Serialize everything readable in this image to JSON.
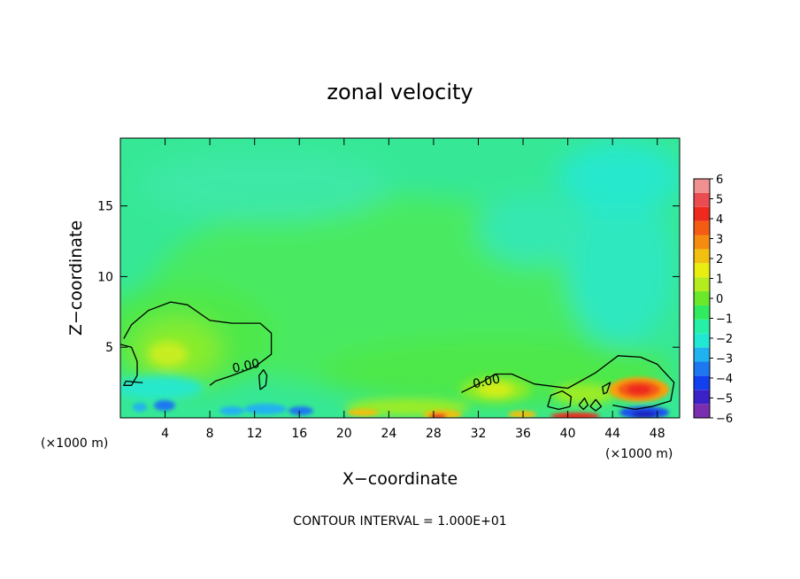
{
  "chart_data": {
    "type": "heatmap",
    "title": "zonal velocity",
    "xlabel": "X−coordinate",
    "ylabel": "Z−coordinate",
    "x_unit_left": "(×1000 m)",
    "x_unit_right": "(×1000 m)",
    "xlim": [
      0,
      50
    ],
    "ylim": [
      0,
      19.8
    ],
    "x_ticks": [
      {
        "v": 4,
        "label": "4"
      },
      {
        "v": 8,
        "label": "8"
      },
      {
        "v": 12,
        "label": "12"
      },
      {
        "v": 16,
        "label": "16"
      },
      {
        "v": 20,
        "label": "20"
      },
      {
        "v": 24,
        "label": "24"
      },
      {
        "v": 28,
        "label": "28"
      },
      {
        "v": 32,
        "label": "32"
      },
      {
        "v": 36,
        "label": "36"
      },
      {
        "v": 40,
        "label": "40"
      },
      {
        "v": 44,
        "label": "44"
      },
      {
        "v": 48,
        "label": "48"
      }
    ],
    "y_ticks": [
      {
        "v": 5,
        "label": "5"
      },
      {
        "v": 10,
        "label": "10"
      },
      {
        "v": 15,
        "label": "15"
      }
    ],
    "colorbar": {
      "range": [
        -6,
        6
      ],
      "labels": [
        {
          "v": 6,
          "label": "6"
        },
        {
          "v": 5,
          "label": "5"
        },
        {
          "v": 4,
          "label": "4"
        },
        {
          "v": 3,
          "label": "3"
        },
        {
          "v": 2,
          "label": "2"
        },
        {
          "v": 1,
          "label": "1"
        },
        {
          "v": 0,
          "label": "0"
        },
        {
          "v": -1,
          "label": "−1"
        },
        {
          "v": -2,
          "label": "−2"
        },
        {
          "v": -3,
          "label": "−3"
        },
        {
          "v": -4,
          "label": "−4"
        },
        {
          "v": -5,
          "label": "−5"
        },
        {
          "v": -6,
          "label": "−6"
        }
      ],
      "colors": [
        "#7a2fb0",
        "#3a22c8",
        "#1240ee",
        "#1d78f0",
        "#20b2f0",
        "#20e8d2",
        "#26f0a8",
        "#30ea60",
        "#6ae82a",
        "#b4ec20",
        "#eaee10",
        "#f2c010",
        "#f58c10",
        "#f45c14",
        "#ee2a1e",
        "#ea4c52",
        "#f09090"
      ]
    },
    "contour_labels": [
      {
        "text": "0.00",
        "x": 11.3,
        "z": 3.4
      },
      {
        "text": "0.00",
        "x": 32.8,
        "z": 2.3
      }
    ],
    "zero_contours": [
      [
        [
          0,
          5.2
        ],
        [
          1,
          5.0
        ],
        [
          1.5,
          4.0
        ],
        [
          1.5,
          3.0
        ],
        [
          1,
          2.3
        ],
        [
          0.3,
          2.3
        ],
        [
          0.5,
          2.6
        ],
        [
          1.8,
          2.5
        ],
        [
          2,
          2.5
        ]
      ],
      [
        [
          0.3,
          5.6
        ],
        [
          1,
          6.6
        ],
        [
          2.5,
          7.6
        ],
        [
          4.5,
          8.2
        ],
        [
          6,
          8.0
        ],
        [
          8,
          6.9
        ],
        [
          10,
          6.7
        ],
        [
          12.5,
          6.7
        ],
        [
          13.5,
          6.0
        ],
        [
          13.5,
          4.5
        ],
        [
          12,
          3.6
        ],
        [
          10,
          3.0
        ],
        [
          8.5,
          2.6
        ],
        [
          8,
          2.3
        ]
      ],
      [
        [
          12.5,
          2.0
        ],
        [
          13,
          2.3
        ],
        [
          13.1,
          3.0
        ],
        [
          12.8,
          3.4
        ],
        [
          12.4,
          3.0
        ],
        [
          12.5,
          2.0
        ]
      ],
      [
        [
          30.5,
          1.8
        ],
        [
          31.5,
          2.2
        ],
        [
          32.5,
          2.6
        ],
        [
          33.5,
          3.1
        ],
        [
          35,
          3.1
        ],
        [
          37,
          2.4
        ],
        [
          40,
          2.1
        ],
        [
          42.5,
          3.2
        ],
        [
          44.5,
          4.4
        ],
        [
          46.5,
          4.3
        ],
        [
          48,
          3.8
        ],
        [
          49.5,
          2.5
        ],
        [
          49.2,
          1.2
        ],
        [
          47.5,
          0.8
        ],
        [
          46,
          0.6
        ],
        [
          44,
          0.9
        ]
      ],
      [
        [
          43.5,
          1.8
        ],
        [
          43.8,
          2.5
        ],
        [
          43.1,
          2.2
        ],
        [
          43.2,
          1.7
        ],
        [
          43.5,
          1.8
        ]
      ],
      [
        [
          38.2,
          0.8
        ],
        [
          38.5,
          1.6
        ],
        [
          39.5,
          1.9
        ],
        [
          40.3,
          1.5
        ],
        [
          40.2,
          0.8
        ],
        [
          39.2,
          0.6
        ],
        [
          38.2,
          0.8
        ]
      ],
      [
        [
          41,
          0.9
        ],
        [
          41.5,
          1.4
        ],
        [
          41.8,
          0.9
        ],
        [
          41.4,
          0.6
        ],
        [
          41,
          0.9
        ]
      ],
      [
        [
          42,
          0.8
        ],
        [
          42.5,
          1.3
        ],
        [
          43,
          0.8
        ],
        [
          42.5,
          0.5
        ],
        [
          42,
          0.8
        ]
      ]
    ],
    "footer": "CONTOUR INTERVAL = 1.000E+01"
  }
}
